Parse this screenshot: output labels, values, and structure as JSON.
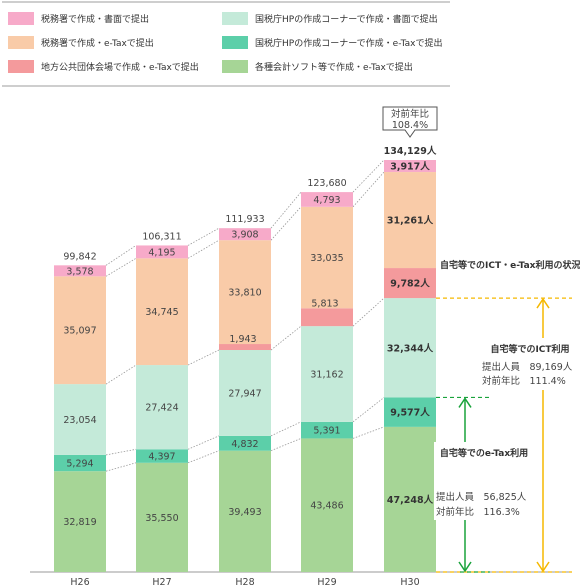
{
  "chart_data": {
    "type": "bar",
    "stacked": true,
    "categories": [
      "H26",
      "H27",
      "H28",
      "H29",
      "H30"
    ],
    "series": [
      {
        "name": "各種会計ソフト等で作成・e-Taxで提出",
        "color": "#a6d596",
        "values": [
          32819,
          35550,
          39493,
          43486,
          47248
        ]
      },
      {
        "name": "国税庁HPの作成コーナーで作成・e-Taxで提出",
        "color": "#5ccfa9",
        "values": [
          5294,
          4397,
          4832,
          5391,
          9577
        ]
      },
      {
        "name": "国税庁HPの作成コーナーで作成・書面で提出",
        "color": "#c4ead9",
        "values": [
          23054,
          27424,
          27947,
          31162,
          32344
        ]
      },
      {
        "name": "地方公共団体会場で作成・e-Taxで提出",
        "color": "#f49a9c",
        "values": [
          null,
          null,
          1943,
          5813,
          9782
        ]
      },
      {
        "name": "税務署で作成・e-Taxで提出",
        "color": "#f9cba8",
        "values": [
          35097,
          34745,
          33810,
          33035,
          31261
        ]
      },
      {
        "name": "税務署で作成・書面で提出",
        "color": "#f7aac9",
        "values": [
          3578,
          4195,
          3908,
          4793,
          3917
        ]
      }
    ],
    "value_labels": [
      [
        "32,819",
        "5,294",
        "23,054",
        "",
        "35,097",
        "3,578"
      ],
      [
        "35,550",
        "4,397",
        "27,424",
        "",
        "34,745",
        "4,195"
      ],
      [
        "39,493",
        "4,832",
        "27,947",
        "1,943",
        "33,810",
        "3,908"
      ],
      [
        "43,486",
        "5,391",
        "31,162",
        "5,813",
        "33,035",
        "4,793"
      ],
      [
        "47,248人",
        "9,577人",
        "32,344人",
        "9,782人",
        "31,261人",
        "3,917人"
      ]
    ],
    "totals": [
      99842,
      106311,
      111933,
      123680,
      134129
    ],
    "total_labels": [
      "99,842",
      "106,311",
      "111,933",
      "123,680",
      "134,129人"
    ],
    "ylim": [
      0,
      145000
    ],
    "legend_position": "top"
  },
  "legend": [
    {
      "label": "税務署で作成・書面で提出",
      "color": "#f7aac9"
    },
    {
      "label": "国税庁HPの作成コーナーで作成・書面で提出",
      "color": "#c4ead9"
    },
    {
      "label": "税務署で作成・e-Taxで提出",
      "color": "#f9cba8"
    },
    {
      "label": "国税庁HPの作成コーナーで作成・e-Taxで提出",
      "color": "#5ccfa9"
    },
    {
      "label": "地方公共団体会場で作成・e-Taxで提出",
      "color": "#f49a9c"
    },
    {
      "label": "各種会計ソフト等で作成・e-Taxで提出",
      "color": "#a6d596"
    }
  ],
  "callout": {
    "line1": "対前年比",
    "line2": "108.4%"
  },
  "side": {
    "title": "自宅等でのICT・e-Tax利用の状況",
    "ict_title": "自宅等でのICT利用",
    "ict_line1": "提出人員　89,169人",
    "ict_line2": "対前年比　111.4%",
    "ict_color": "#f5b800",
    "etax_title": "自宅等でのe-Tax利用",
    "etax_line1": "提出人員　56,825人",
    "etax_line2": "対前年比　116.3%",
    "etax_color": "#1aa33c"
  }
}
